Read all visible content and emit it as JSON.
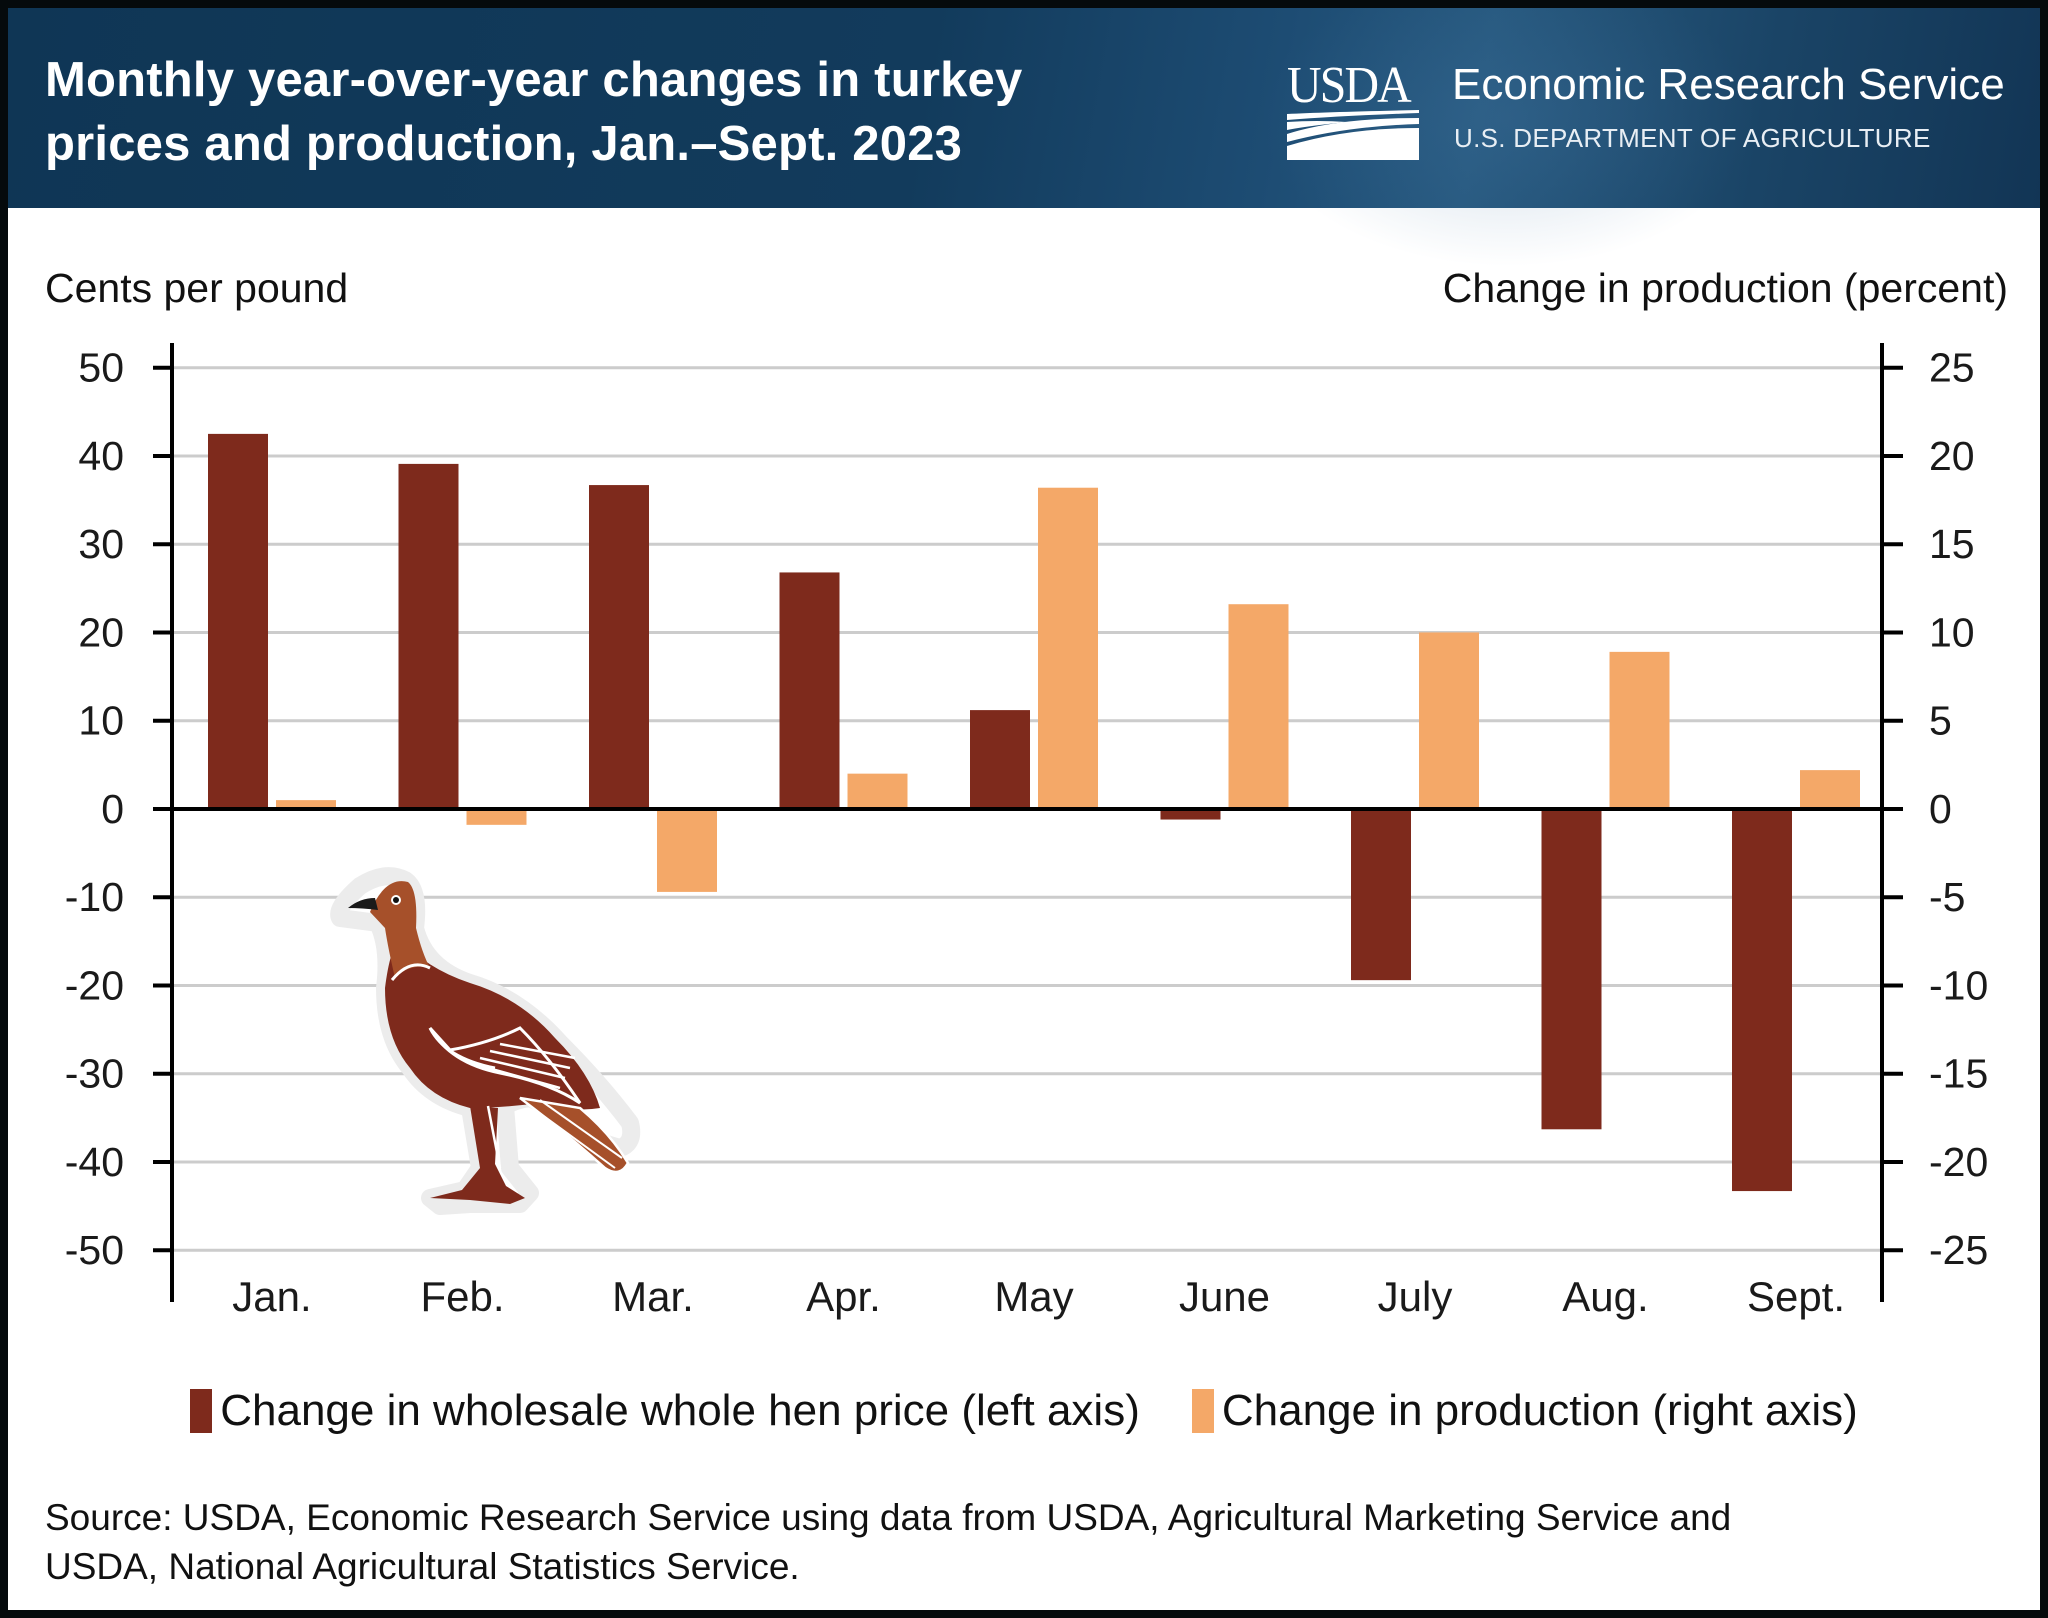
{
  "header": {
    "title_line1": "Monthly year-over-year changes in turkey",
    "title_line2": "prices and production, Jan.–Sept. 2023",
    "logo_text": "USDA",
    "agency_name": "Economic Research Service",
    "department": "U.S. DEPARTMENT OF AGRICULTURE"
  },
  "colors": {
    "header_bg": "#0f3655",
    "price_bar": "#7e2a1c",
    "production_bar": "#f4a868",
    "gridline": "#cccccc",
    "axis": "#000000"
  },
  "chart_data": {
    "type": "bar",
    "title": "Monthly year-over-year changes in turkey prices and production, Jan.–Sept. 2023",
    "categories": [
      "Jan.",
      "Feb.",
      "Mar.",
      "Apr.",
      "May",
      "June",
      "July",
      "Aug.",
      "Sept."
    ],
    "series": [
      {
        "name": "Change in wholesale whole hen price (left axis)",
        "axis": "left",
        "values": [
          42.5,
          39.1,
          36.7,
          26.8,
          11.2,
          -1.2,
          -19.4,
          -36.3,
          -43.3
        ]
      },
      {
        "name": "Change in production (right axis)",
        "axis": "right",
        "values": [
          0.5,
          -0.9,
          -4.7,
          2.0,
          18.2,
          11.6,
          10.0,
          8.9,
          2.2
        ]
      }
    ],
    "ylabel_left": "Cents per pound",
    "ylabel_right": "Change in production (percent)",
    "ylim_left": [
      -50,
      50
    ],
    "ylim_right": [
      -25,
      25
    ],
    "yticks_left": [
      50,
      40,
      30,
      20,
      10,
      0,
      -10,
      -20,
      -30,
      -40,
      -50
    ],
    "yticks_right": [
      25,
      20,
      15,
      10,
      5,
      0,
      -5,
      -10,
      -15,
      -20,
      -25
    ],
    "ytick_labels_left": [
      "50",
      "40",
      "30",
      "20",
      "10",
      "0",
      "-10",
      "-20",
      "-30",
      "-40",
      "-50"
    ],
    "ytick_labels_right": [
      "25",
      "20",
      "15",
      "10",
      "5",
      "0",
      "-5",
      "-10",
      "-15",
      "-20",
      "-25"
    ],
    "grid": true,
    "legend_position": "bottom"
  },
  "legend": {
    "items": [
      {
        "label": "Change in wholesale whole hen price (left axis)",
        "color": "#7e2a1c"
      },
      {
        "label": "Change in production (right axis)",
        "color": "#f4a868"
      }
    ]
  },
  "source": {
    "line1": "Source: USDA, Economic Research Service using data from USDA, Agricultural Marketing Service and",
    "line2": "USDA, National Agricultural Statistics Service."
  },
  "illustration": {
    "icon": "turkey-icon"
  }
}
